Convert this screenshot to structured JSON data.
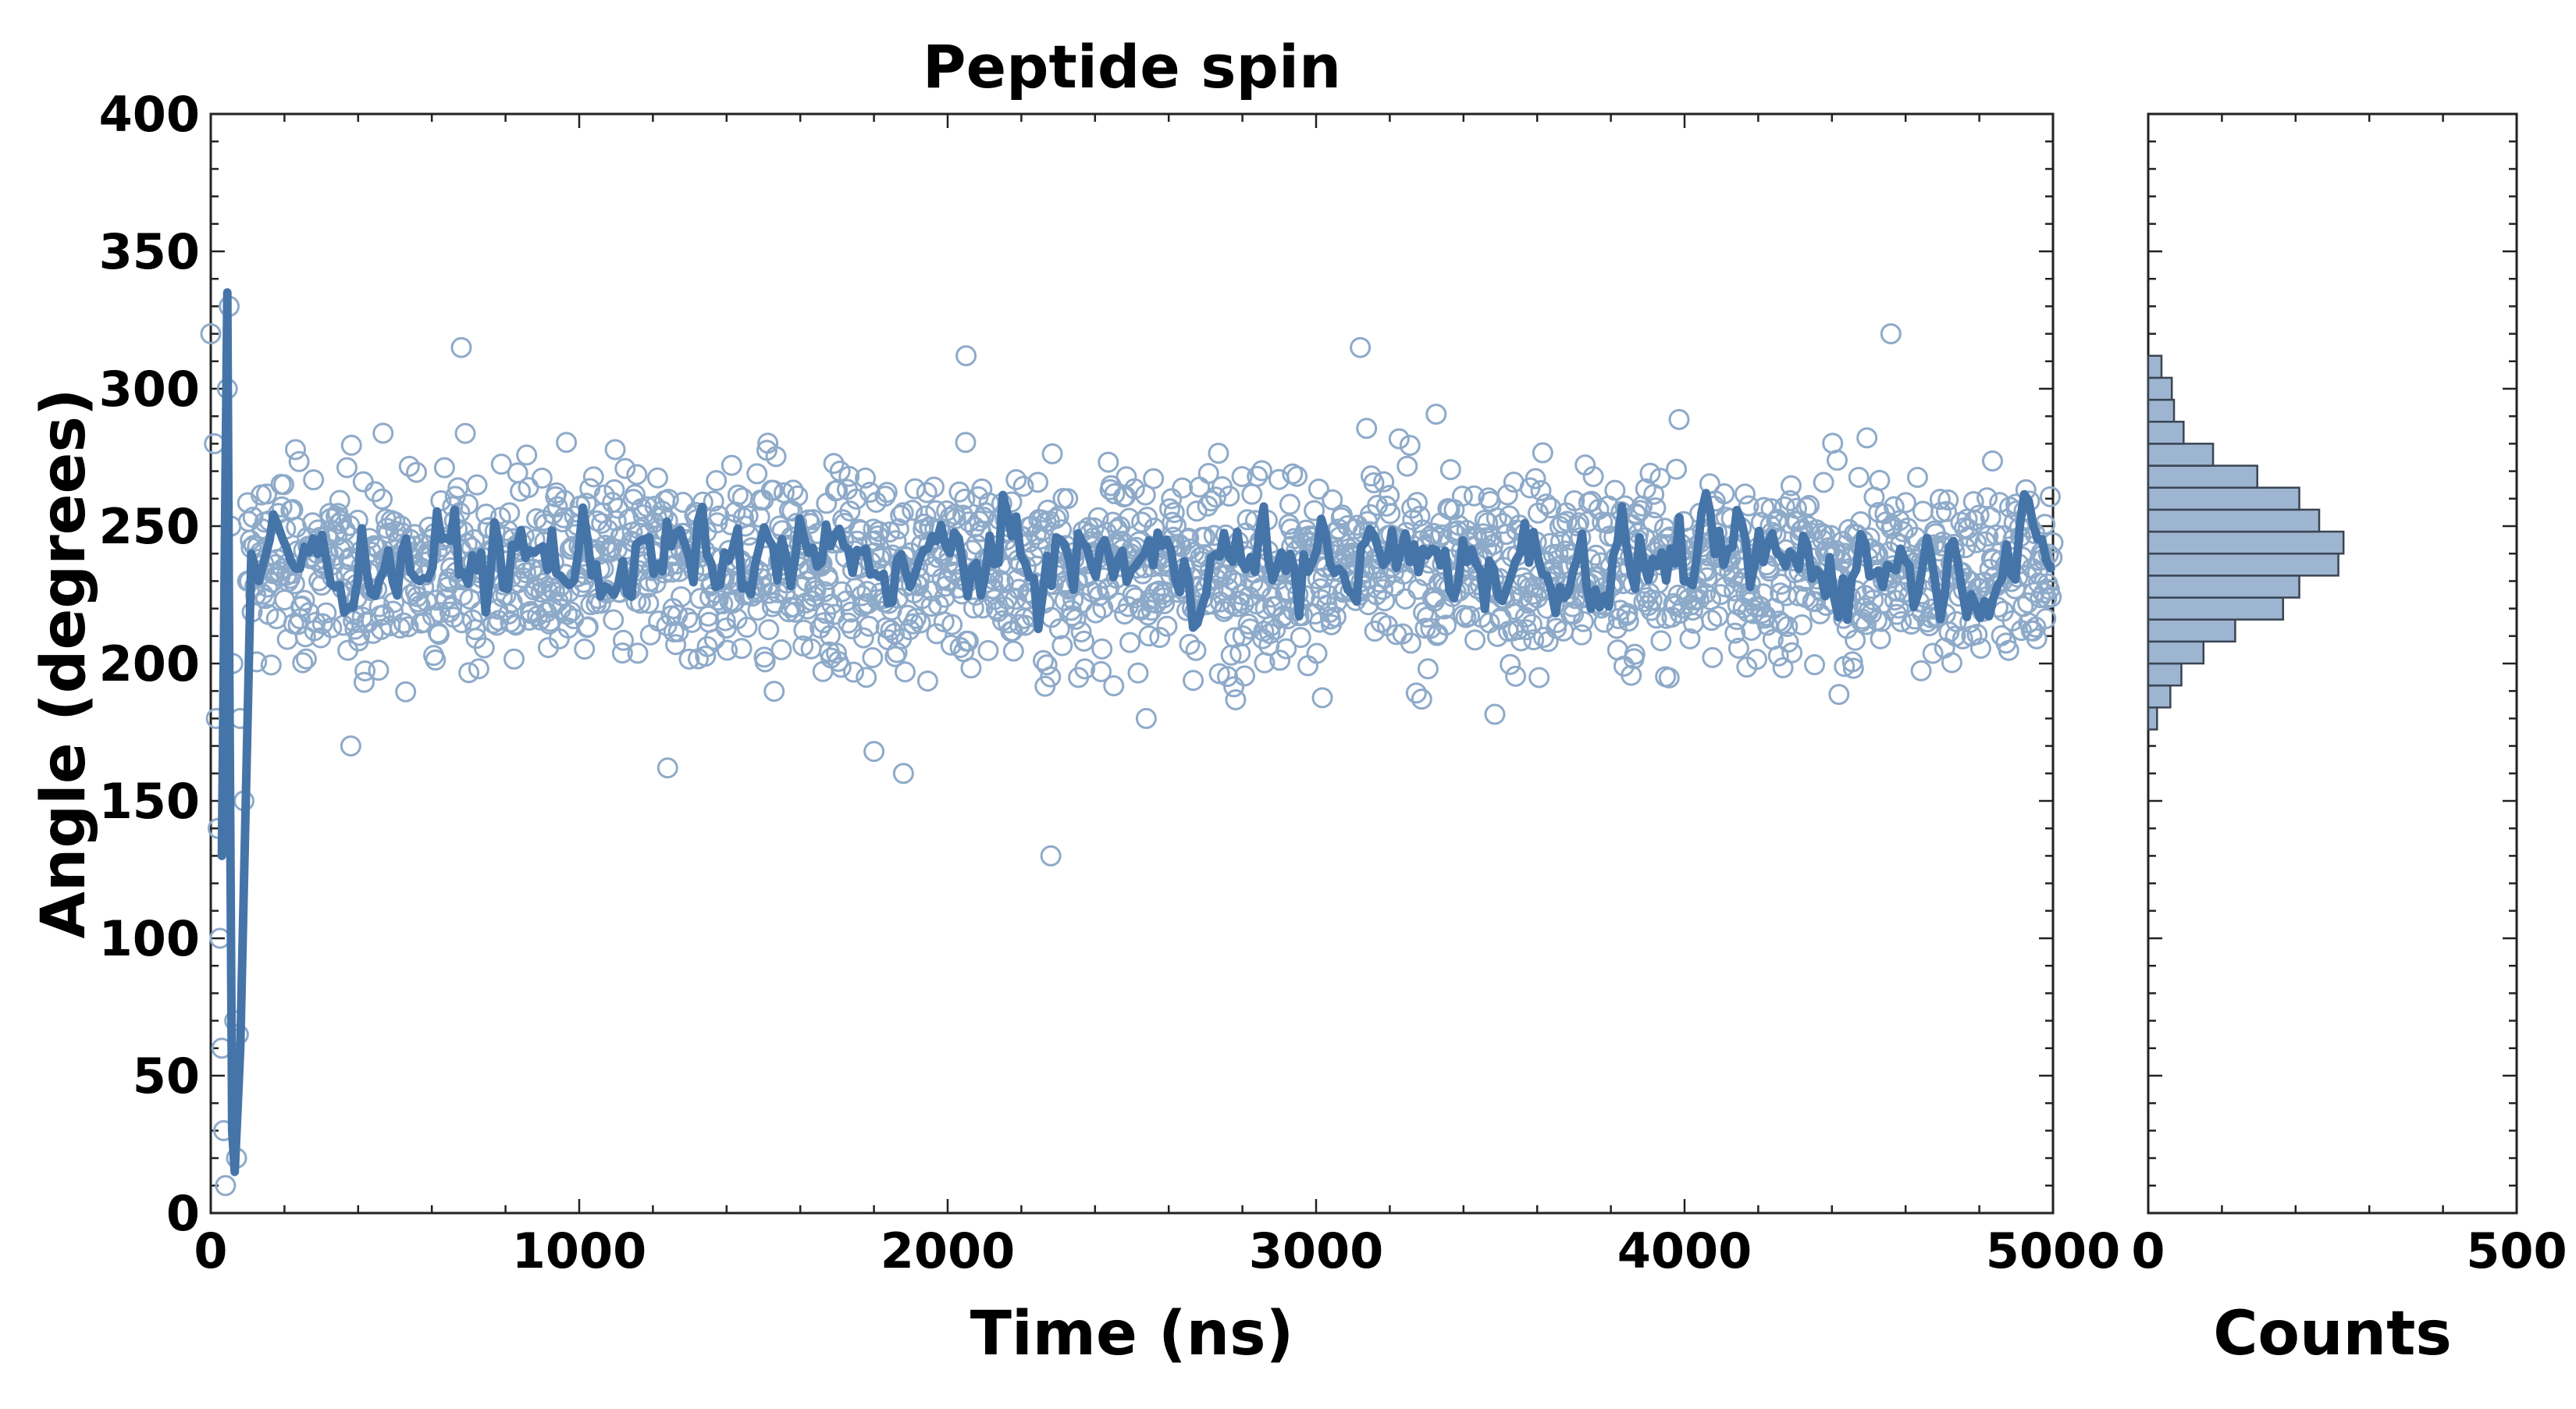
{
  "colors": {
    "series": "#4574a8",
    "scatter": "#8eaac9",
    "hist_fill": "#9db5d1",
    "hist_edge": "#3a4452",
    "frame": "#222222"
  },
  "chart_data": [
    {
      "type": "scatter",
      "title": "Peptide spin",
      "xlabel": "Time (ns)",
      "ylabel": "Angle (degrees)",
      "xlim": [
        0,
        5000
      ],
      "ylim": [
        0,
        400
      ],
      "xticks": [
        0,
        1000,
        2000,
        3000,
        4000,
        5000
      ],
      "yticks": [
        0,
        50,
        100,
        150,
        200,
        250,
        300,
        350,
        400
      ],
      "grid": false,
      "series": [
        {
          "style": "hollow markers",
          "description_note": "",
          "x_range": [
            0,
            5000
          ],
          "n_points": 2000,
          "typical_mean": 235,
          "typical_spread": 25,
          "outliers": [
            [
              2280,
              130
            ],
            [
              1240,
              162
            ],
            [
              1880,
              160
            ],
            [
              1800,
              168
            ],
            [
              380,
              170
            ],
            [
              4560,
              320
            ],
            [
              3120,
              315
            ],
            [
              680,
              315
            ],
            [
              2050,
              312
            ]
          ],
          "initial_transient": [
            [
              0,
              320
            ],
            [
              10,
              280
            ],
            [
              15,
              180
            ],
            [
              20,
              140
            ],
            [
              25,
              100
            ],
            [
              30,
              60
            ],
            [
              35,
              30
            ],
            [
              40,
              10
            ],
            [
              45,
              300
            ],
            [
              50,
              330
            ],
            [
              55,
              250
            ],
            [
              60,
              200
            ],
            [
              65,
              70
            ],
            [
              70,
              20
            ],
            [
              75,
              65
            ],
            [
              80,
              180
            ],
            [
              90,
              150
            ],
            [
              100,
              230
            ]
          ]
        },
        {
          "style": "line",
          "initial": [
            [
              30,
              130
            ],
            [
              45,
              335
            ],
            [
              50,
              205
            ],
            [
              58,
              30
            ],
            [
              65,
              15
            ],
            [
              80,
              60
            ],
            [
              110,
              240
            ],
            [
              130,
              230
            ],
            [
              160,
              245
            ]
          ],
          "mean": 237,
          "fluctuation": 12
        }
      ]
    },
    {
      "type": "bar",
      "orientation": "horizontal",
      "xlabel": "Counts",
      "xlim": [
        0,
        500
      ],
      "xticks": [
        0,
        500
      ],
      "ylim": [
        0,
        400
      ],
      "bin_width": 8,
      "bins": [
        {
          "y0": 176,
          "y1": 184,
          "count": 12
        },
        {
          "y0": 184,
          "y1": 192,
          "count": 30
        },
        {
          "y0": 192,
          "y1": 200,
          "count": 45
        },
        {
          "y0": 200,
          "y1": 208,
          "count": 75
        },
        {
          "y0": 208,
          "y1": 216,
          "count": 118
        },
        {
          "y0": 216,
          "y1": 224,
          "count": 183
        },
        {
          "y0": 224,
          "y1": 232,
          "count": 205
        },
        {
          "y0": 232,
          "y1": 240,
          "count": 258
        },
        {
          "y0": 240,
          "y1": 248,
          "count": 265
        },
        {
          "y0": 248,
          "y1": 256,
          "count": 232
        },
        {
          "y0": 256,
          "y1": 264,
          "count": 205
        },
        {
          "y0": 264,
          "y1": 272,
          "count": 148
        },
        {
          "y0": 272,
          "y1": 280,
          "count": 88
        },
        {
          "y0": 280,
          "y1": 288,
          "count": 48
        },
        {
          "y0": 288,
          "y1": 296,
          "count": 35
        },
        {
          "y0": 296,
          "y1": 304,
          "count": 32
        },
        {
          "y0": 304,
          "y1": 312,
          "count": 18
        }
      ]
    }
  ]
}
